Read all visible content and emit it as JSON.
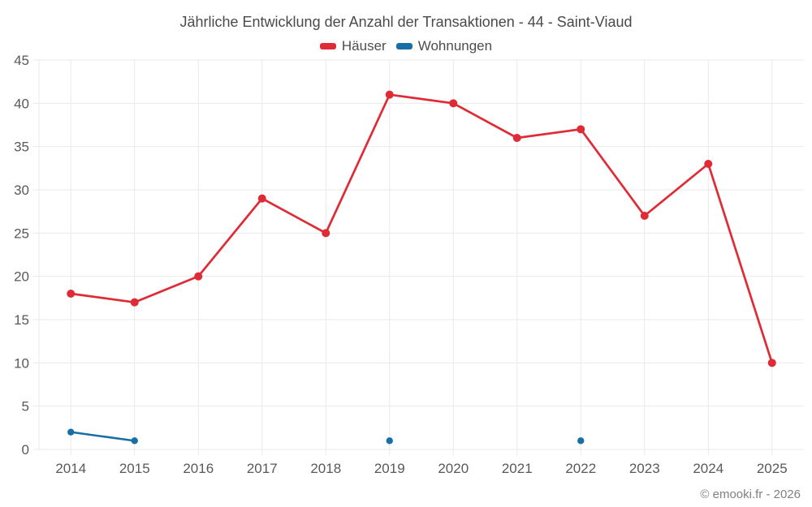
{
  "chart_data": {
    "type": "line",
    "title": "Jährliche Entwicklung der Anzahl der Transaktionen - 44 - Saint-Viaud",
    "categories": [
      "2014",
      "2015",
      "2016",
      "2017",
      "2018",
      "2019",
      "2020",
      "2021",
      "2022",
      "2023",
      "2024",
      "2025"
    ],
    "series": [
      {
        "name": "Häuser",
        "color": "#df2b35",
        "point_radius": 5,
        "line_width": 2.7,
        "values": [
          18,
          17,
          20,
          29,
          25,
          41,
          40,
          36,
          37,
          27,
          33,
          10
        ]
      },
      {
        "name": "Wohnungen",
        "color": "#186fa5",
        "point_radius": 4.2,
        "line_width": 2.5,
        "values": [
          2,
          1,
          null,
          null,
          null,
          1,
          null,
          null,
          1,
          null,
          null,
          null
        ]
      }
    ],
    "xlabel": "",
    "ylabel": "",
    "ylim": [
      0,
      45
    ],
    "ytick_step": 5,
    "yticks": [
      0,
      5,
      10,
      15,
      20,
      25,
      30,
      35,
      40,
      45
    ],
    "grid": true,
    "legend_position": "top"
  },
  "footer": {
    "text": "© emooki.fr - 2026"
  },
  "appearance": {
    "background": "#ffffff",
    "grid_color": "#e9e9e9",
    "axis_label_color": "#595959",
    "title_color": "#4a4a4a",
    "legend_text_color": "#4d4d4d",
    "footer_color": "#808080"
  }
}
